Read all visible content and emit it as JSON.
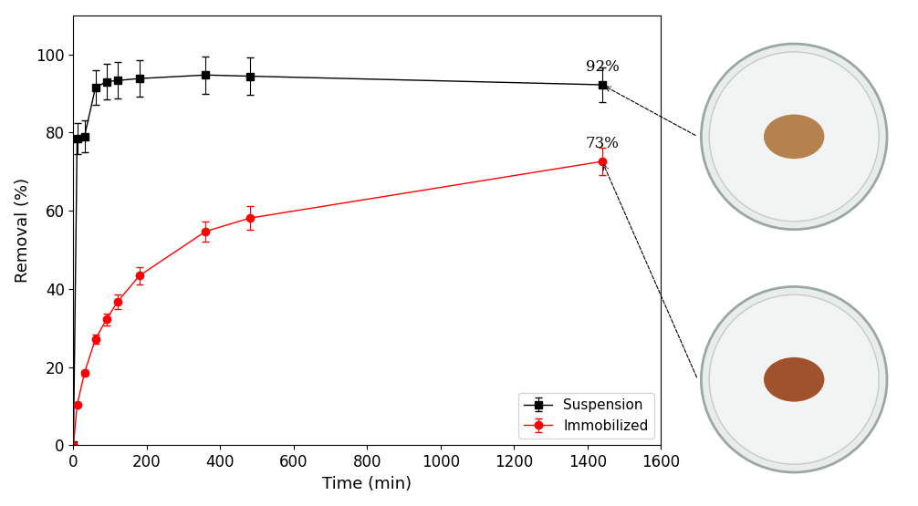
{
  "chart_data": {
    "type": "line",
    "x_label": "Time (min)",
    "y_label": "Removal (%)",
    "xlim": [
      0,
      1600
    ],
    "xticks": [
      0,
      200,
      400,
      600,
      800,
      1000,
      1200,
      1400,
      1600
    ],
    "ylim": [
      0,
      110
    ],
    "yticks": [
      0,
      20,
      40,
      60,
      80,
      100
    ],
    "legend": "lower right",
    "series": [
      {
        "name": "Suspension",
        "color": "#000000",
        "marker": "square",
        "line_style": "solid",
        "x": [
          0,
          10,
          30,
          60,
          90,
          120,
          180,
          360,
          480,
          1440
        ],
        "values": [
          0,
          78.5,
          79,
          91.5,
          93,
          93.3,
          93.8,
          94.7,
          94.4,
          92.2
        ],
        "error": [
          0,
          4,
          4,
          4.5,
          4.5,
          4.7,
          4.7,
          4.8,
          4.8,
          4.5
        ]
      },
      {
        "name": "Immobilized",
        "color": "#ff0000",
        "marker": "circle",
        "line_style": "solid",
        "x": [
          0,
          10,
          30,
          60,
          90,
          120,
          180,
          360,
          480,
          1440
        ],
        "values": [
          0,
          10.3,
          18.5,
          27.2,
          32.2,
          36.7,
          43.4,
          54.7,
          58.1,
          72.6
        ],
        "error": [
          0,
          0.5,
          0.7,
          1.2,
          1.5,
          1.8,
          2.2,
          2.6,
          3,
          3.5
        ]
      }
    ],
    "annotations": [
      {
        "text": "92%",
        "x": 1440,
        "y": 92.2
      },
      {
        "text": "73%",
        "x": 1440,
        "y": 72.6
      }
    ]
  }
}
